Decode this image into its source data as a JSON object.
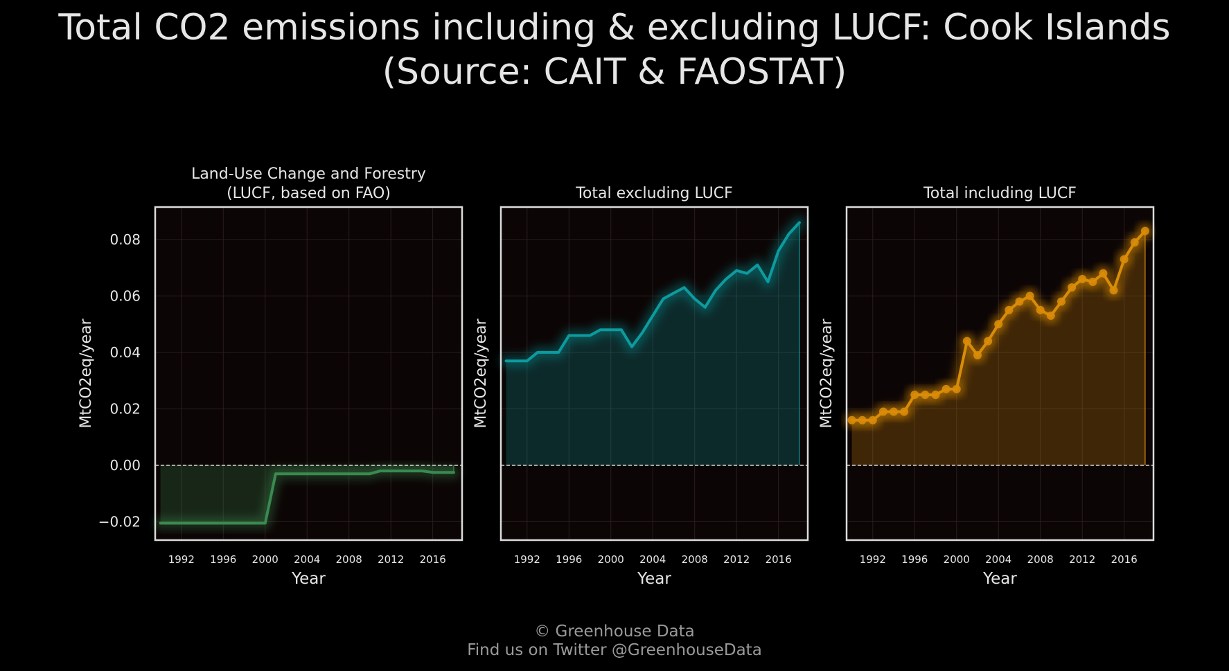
{
  "header": {
    "title_line1": "Total CO2 emissions including & excluding LUCF: Cook Islands",
    "title_line2": "(Source: CAIT & FAOSTAT)"
  },
  "footer": {
    "credit": "© Greenhouse Data",
    "twitter": "Find us on Twitter @GreenhouseData"
  },
  "chart_data": [
    {
      "type": "area",
      "title_lines": [
        "Land-Use Change and Forestry",
        "(LUCF, based on FAO)"
      ],
      "xlabel": "Year",
      "ylabel": "MtCO2eq/year",
      "color": "#3a8a50",
      "markers": false,
      "x": [
        1990,
        1991,
        1992,
        1993,
        1994,
        1995,
        1996,
        1997,
        1998,
        1999,
        2000,
        2001,
        2002,
        2003,
        2004,
        2005,
        2006,
        2007,
        2008,
        2009,
        2010,
        2011,
        2012,
        2013,
        2014,
        2015,
        2016,
        2017,
        2018
      ],
      "values": [
        -0.0205,
        -0.0205,
        -0.0205,
        -0.0205,
        -0.0205,
        -0.0205,
        -0.0205,
        -0.0205,
        -0.0205,
        -0.0205,
        -0.0205,
        -0.003,
        -0.003,
        -0.003,
        -0.003,
        -0.003,
        -0.003,
        -0.003,
        -0.003,
        -0.003,
        -0.003,
        -0.002,
        -0.002,
        -0.002,
        -0.002,
        -0.002,
        -0.0025,
        -0.0025,
        -0.0025
      ]
    },
    {
      "type": "area",
      "title_lines": [
        "Total excluding LUCF"
      ],
      "xlabel": "Year",
      "ylabel": "MtCO2eq/year",
      "color": "#0e9a9e",
      "markers": false,
      "x": [
        1990,
        1991,
        1992,
        1993,
        1994,
        1995,
        1996,
        1997,
        1998,
        1999,
        2000,
        2001,
        2002,
        2003,
        2004,
        2005,
        2006,
        2007,
        2008,
        2009,
        2010,
        2011,
        2012,
        2013,
        2014,
        2015,
        2016,
        2017,
        2018
      ],
      "values": [
        0.037,
        0.037,
        0.037,
        0.04,
        0.04,
        0.04,
        0.046,
        0.046,
        0.046,
        0.048,
        0.048,
        0.048,
        0.042,
        0.047,
        0.053,
        0.059,
        0.061,
        0.063,
        0.059,
        0.056,
        0.062,
        0.066,
        0.069,
        0.068,
        0.071,
        0.065,
        0.076,
        0.082,
        0.086
      ]
    },
    {
      "type": "area",
      "title_lines": [
        "Total including LUCF"
      ],
      "xlabel": "Year",
      "ylabel": "MtCO2eq/year",
      "color": "#d98c0a",
      "markers": true,
      "x": [
        1990,
        1991,
        1992,
        1993,
        1994,
        1995,
        1996,
        1997,
        1998,
        1999,
        2000,
        2001,
        2002,
        2003,
        2004,
        2005,
        2006,
        2007,
        2008,
        2009,
        2010,
        2011,
        2012,
        2013,
        2014,
        2015,
        2016,
        2017,
        2018
      ],
      "values": [
        0.016,
        0.016,
        0.016,
        0.019,
        0.019,
        0.019,
        0.025,
        0.025,
        0.025,
        0.027,
        0.027,
        0.044,
        0.039,
        0.044,
        0.05,
        0.055,
        0.058,
        0.06,
        0.055,
        0.053,
        0.058,
        0.063,
        0.066,
        0.065,
        0.068,
        0.062,
        0.073,
        0.079,
        0.083
      ]
    }
  ],
  "axes": {
    "xticks": [
      1992,
      1996,
      2000,
      2004,
      2008,
      2012,
      2016
    ],
    "yticks": [
      -0.02,
      0.0,
      0.02,
      0.04,
      0.06,
      0.08
    ],
    "ytick_labels": [
      "−0.02",
      "0.00",
      "0.02",
      "0.04",
      "0.06",
      "0.08"
    ],
    "xlim": [
      1989.5,
      2018.8
    ],
    "ylim": [
      -0.0265,
      0.0915
    ],
    "shared_y": true,
    "zero_line": "dashed"
  }
}
